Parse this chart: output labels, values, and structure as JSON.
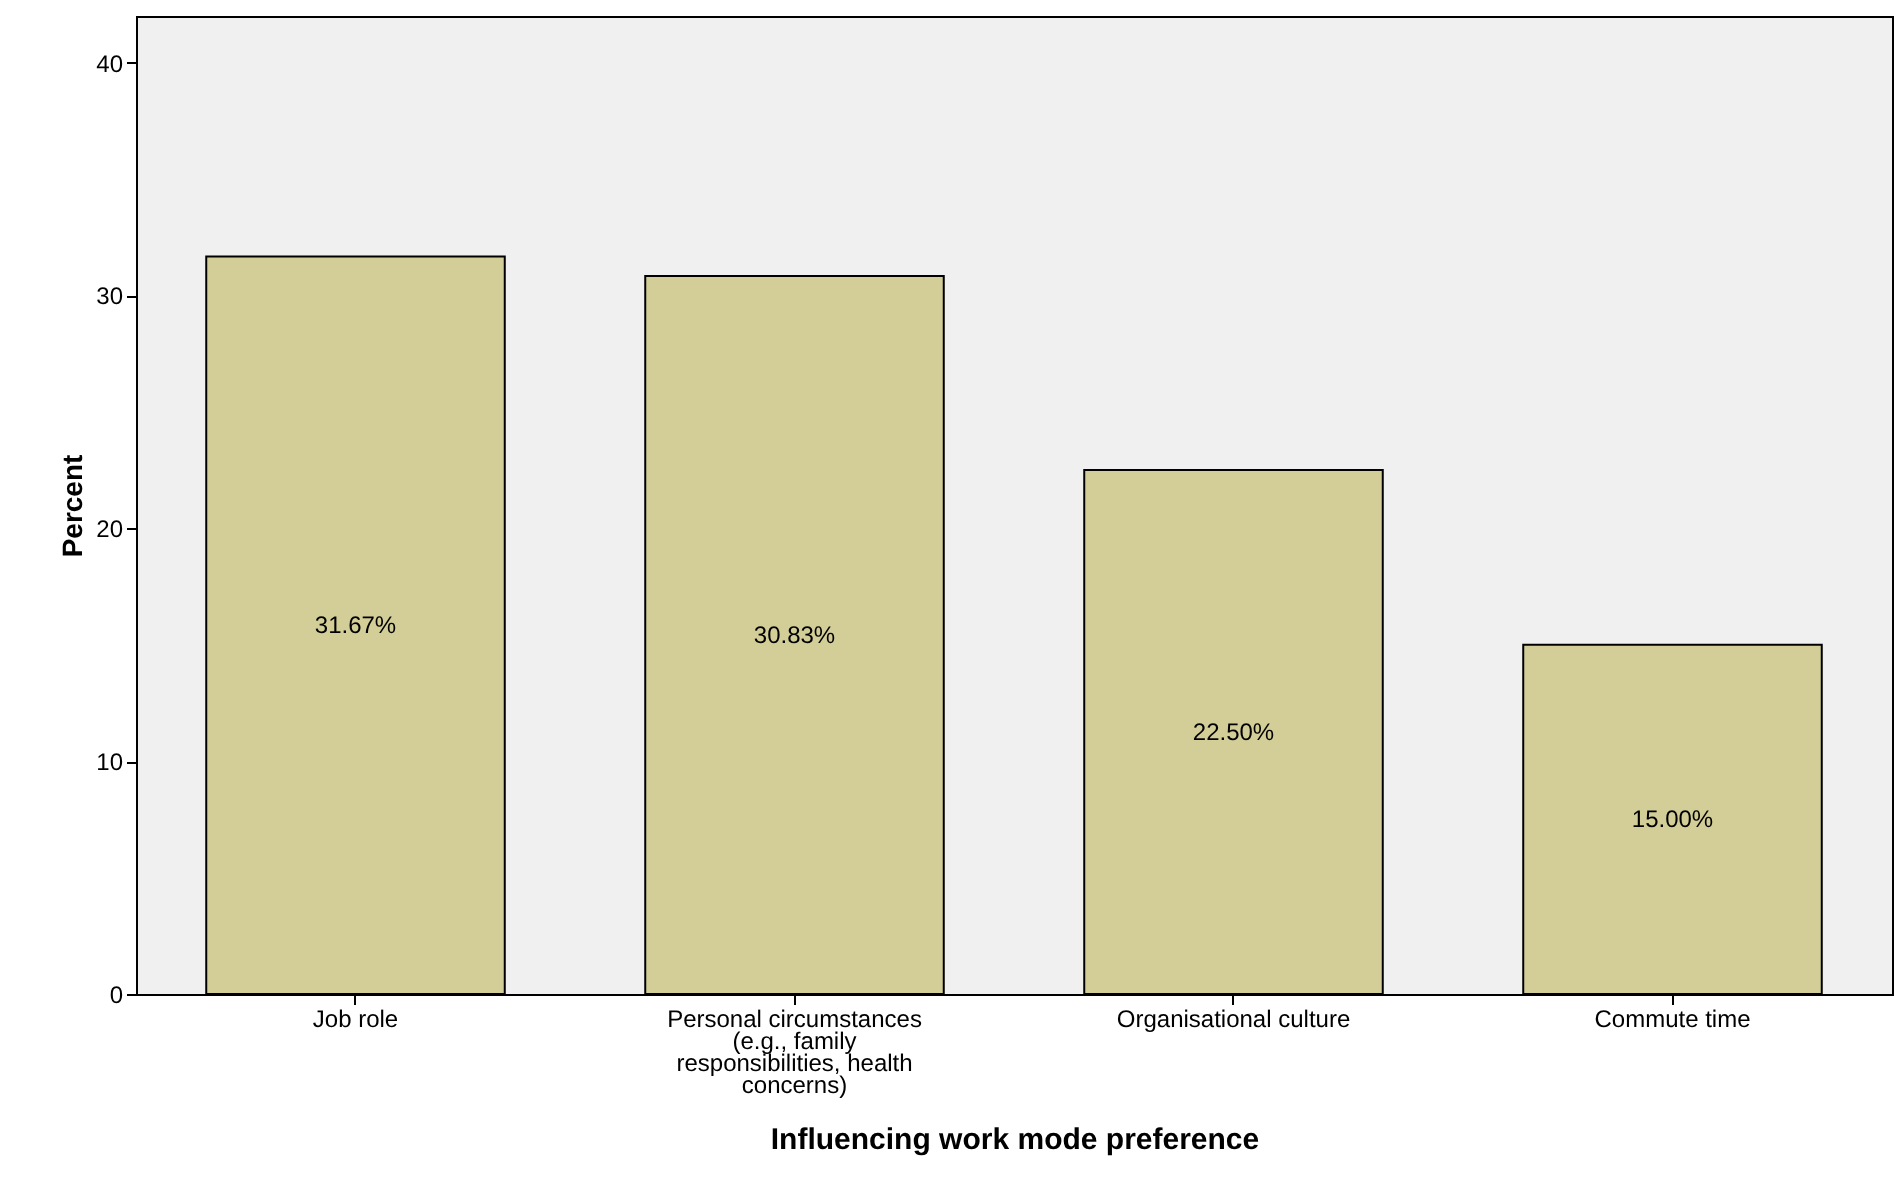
{
  "chart_data": {
    "type": "bar",
    "xlabel": "Influencing work mode preference",
    "ylabel": "Percent",
    "categories": [
      "Job role",
      "Personal circumstances (e.g., family responsibilities, health concerns)",
      "Organisational culture",
      "Commute time"
    ],
    "values": [
      31.67,
      30.83,
      22.5,
      15.0
    ],
    "value_labels": [
      "31.67%",
      "30.83%",
      "22.50%",
      "15.00%"
    ],
    "color": "#d3ce97",
    "ylim": [
      0,
      42
    ],
    "yticks": [
      0,
      10,
      20,
      30,
      40
    ],
    "grid": false
  }
}
